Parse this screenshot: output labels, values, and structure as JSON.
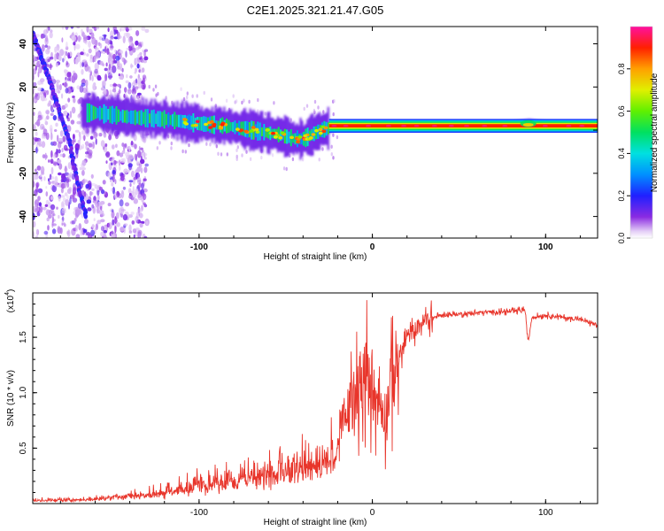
{
  "figure": {
    "title": "C2E1.2025.321.21.47.G05"
  },
  "colorbar": {
    "label": "Normalized spectral amplitude",
    "ticks": [
      "0.0",
      "0.2",
      "0.4",
      "0.6",
      "0.8"
    ],
    "tick_values": [
      0.0,
      0.2,
      0.4,
      0.6,
      0.8
    ],
    "range": [
      0,
      1
    ]
  },
  "chart_data": [
    {
      "type": "heatmap",
      "name": "spectrogram",
      "xlabel": "Height of straight line (km)",
      "ylabel": "Frequency (Hz)",
      "xlim": [
        -196,
        130
      ],
      "ylim": [
        -50,
        48
      ],
      "xticks": [
        -100,
        0,
        100
      ],
      "xtick_labels": [
        "-100",
        "0",
        "100"
      ],
      "yticks": [
        -40,
        -20,
        0,
        20,
        40
      ],
      "ytick_labels": [
        "-40",
        "-20",
        "0",
        "20",
        "40"
      ],
      "ridge": {
        "description_units": "frequency (Hz) of the main spectral ridge vs height (km)",
        "x": [
          -160,
          -140,
          -120,
          -100,
          -85,
          -70,
          -55,
          -45,
          -40,
          -35,
          -30,
          -25,
          -20,
          -10,
          0,
          10,
          20,
          40,
          60,
          80,
          90,
          100,
          130
        ],
        "y": [
          8,
          6,
          5,
          3,
          2,
          0,
          -2,
          -4,
          -4,
          -2,
          0,
          1,
          2,
          2,
          2,
          2,
          2,
          2,
          2,
          2,
          3,
          2,
          2
        ]
      },
      "secondary_trace": {
        "x": [
          -196,
          -185,
          -175,
          -170,
          -165
        ],
        "y": [
          45,
          20,
          -5,
          -25,
          -40
        ]
      }
    },
    {
      "type": "line",
      "name": "snr",
      "xlabel": "Height of straight line (km)",
      "ylabel": "SNR (10 * v/v)",
      "scale_label": "(x10",
      "scale_exponent": "4",
      "xlim": [
        -196,
        130
      ],
      "ylim": [
        0,
        19000
      ],
      "xticks": [
        -100,
        0,
        100
      ],
      "xtick_labels": [
        "-100",
        "0",
        "100"
      ],
      "yticks": [
        5000,
        10000,
        15000
      ],
      "ytick_labels": [
        "0.5",
        "1.0",
        "1.5"
      ],
      "series": [
        {
          "name": "SNR",
          "color": "#e8352b",
          "x": [
            -196,
            -170,
            -150,
            -130,
            -110,
            -100,
            -90,
            -80,
            -70,
            -60,
            -50,
            -40,
            -30,
            -25,
            -20,
            -15,
            -10,
            -5,
            0,
            5,
            8,
            10,
            15,
            20,
            30,
            40,
            50,
            60,
            70,
            80,
            88,
            90,
            92,
            100,
            110,
            120,
            130
          ],
          "y": [
            300,
            400,
            600,
            900,
            1500,
            2000,
            2200,
            2500,
            2800,
            3000,
            3300,
            3600,
            4000,
            5000,
            6000,
            8000,
            10000,
            12000,
            10000,
            9000,
            8000,
            11000,
            13000,
            15000,
            16500,
            17000,
            17100,
            17200,
            17300,
            17300,
            17500,
            14500,
            16800,
            17000,
            16800,
            16600,
            16100
          ]
        }
      ]
    }
  ]
}
